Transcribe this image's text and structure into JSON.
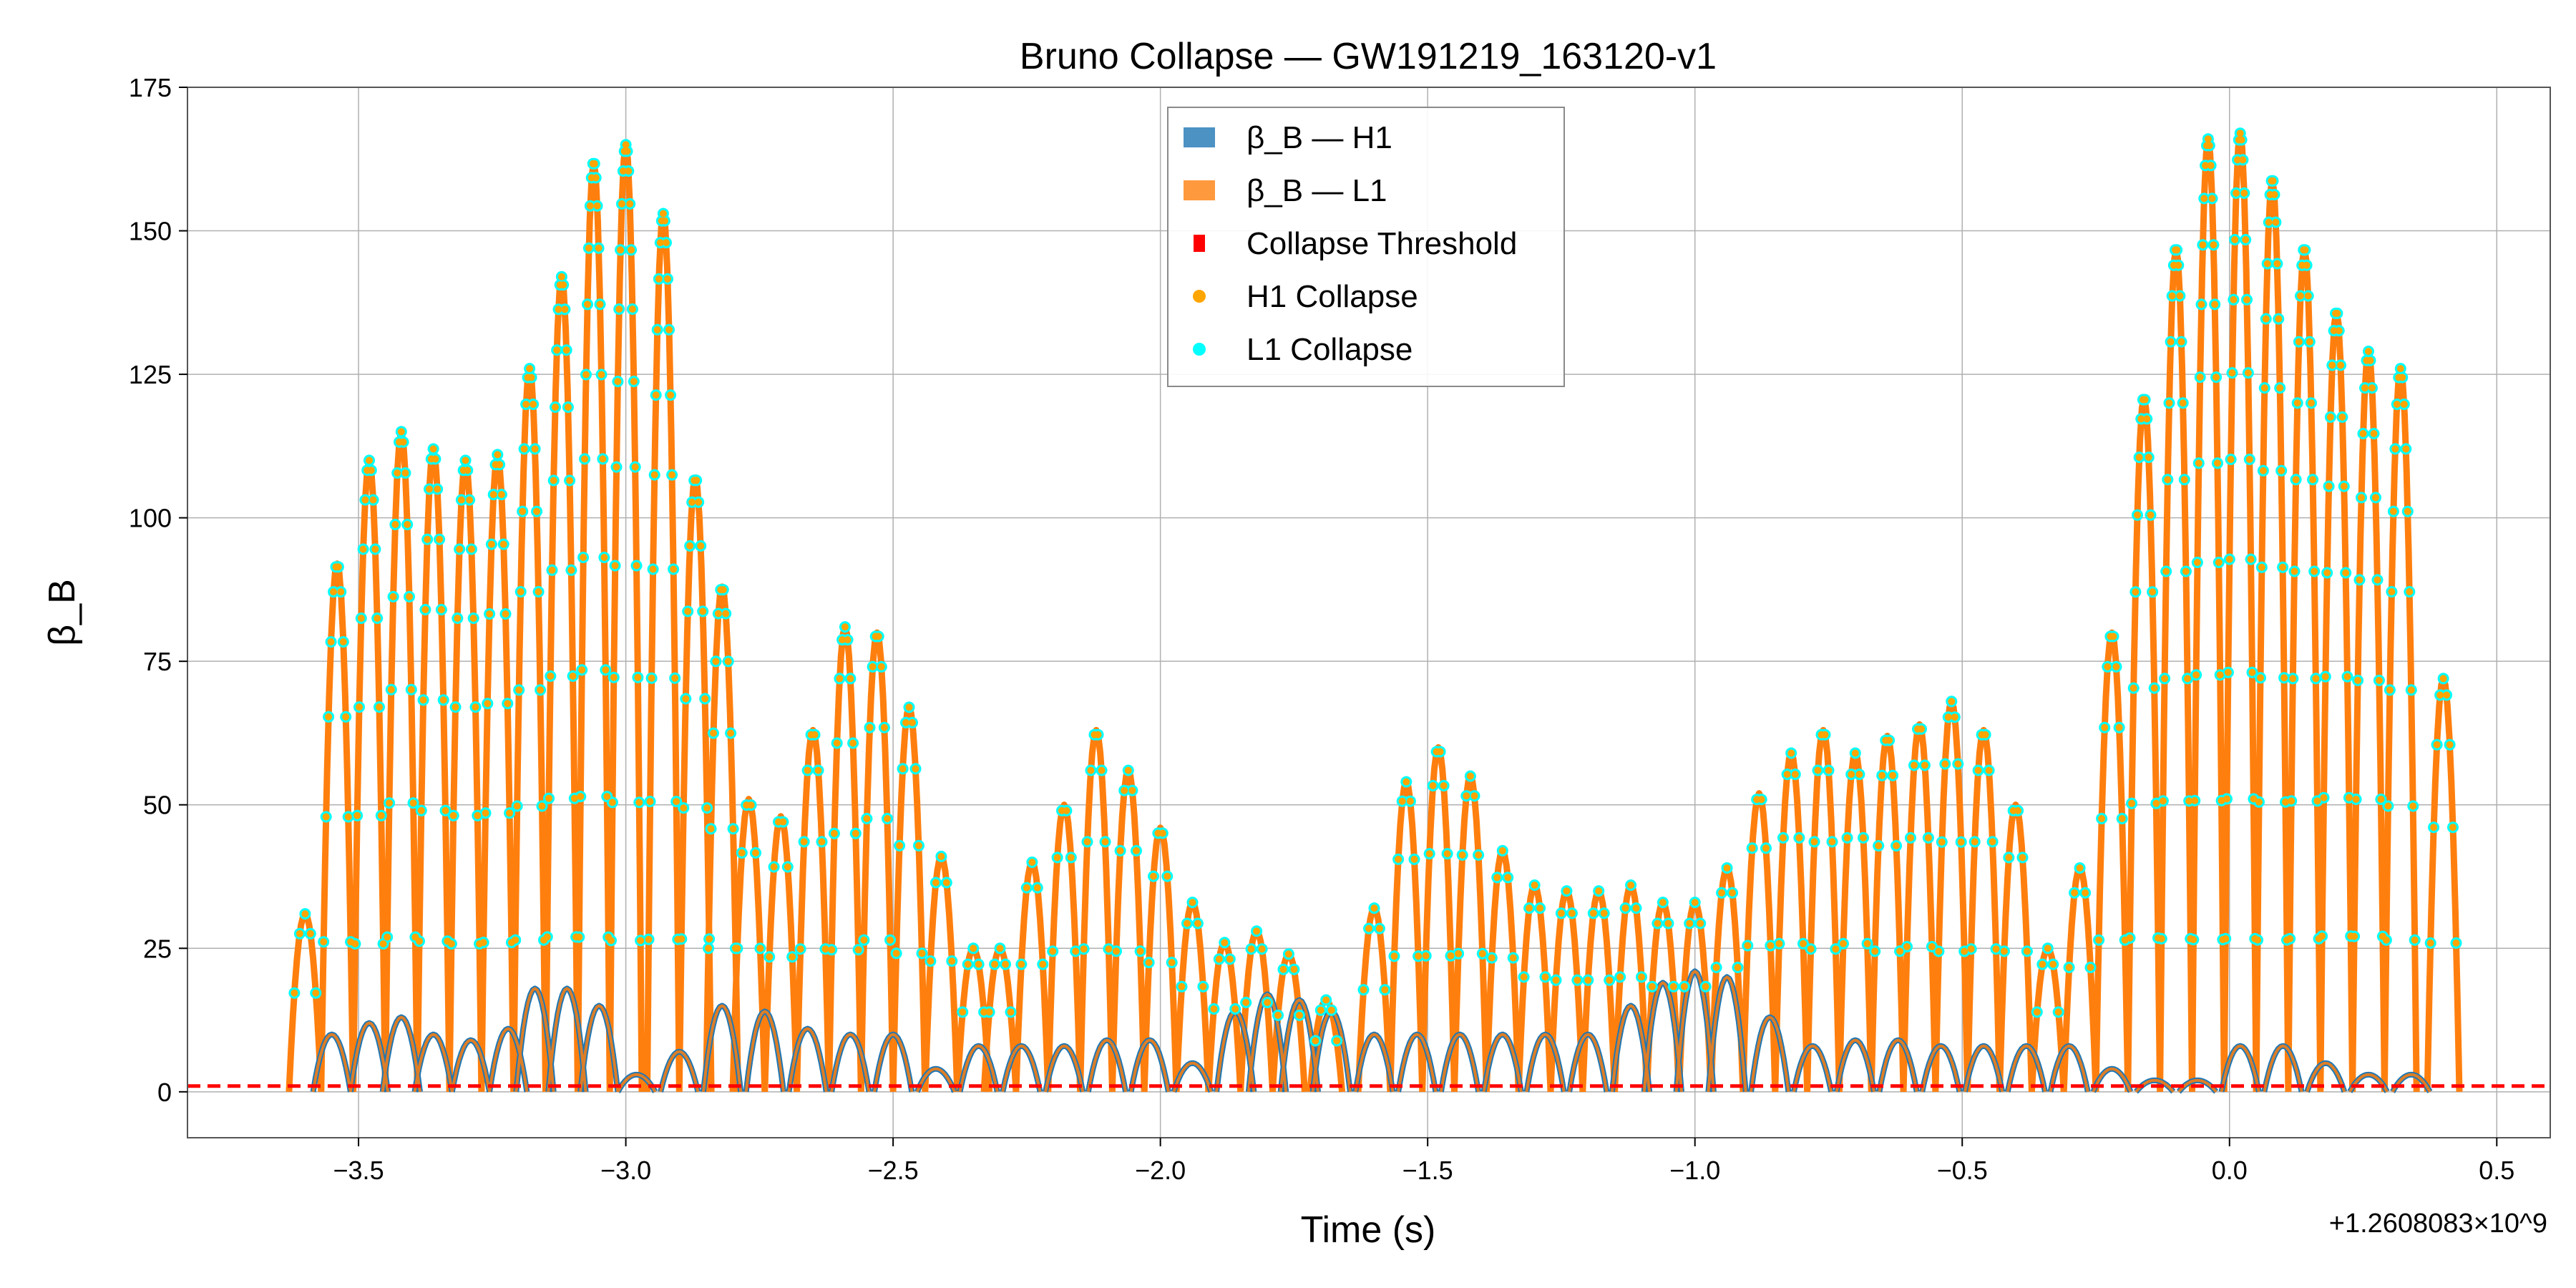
{
  "chart_data": {
    "type": "line",
    "title": "Bruno Collapse — GW191219_163120-v1",
    "xlabel": "Time (s)",
    "ylabel": "β_B",
    "x_offset_label": "+1.2608083×10^9",
    "xlim": [
      -3.82,
      0.6
    ],
    "ylim": [
      -8,
      175
    ],
    "x_ticks": [
      -3.5,
      -3.0,
      -2.5,
      -2.0,
      -1.5,
      -1.0,
      -0.5,
      0.0,
      0.5
    ],
    "x_tick_labels": [
      "−3.5",
      "−3.0",
      "−2.5",
      "−2.0",
      "−1.5",
      "−1.0",
      "−0.5",
      "0.0",
      "0.5"
    ],
    "y_ticks": [
      0,
      25,
      50,
      75,
      100,
      125,
      150,
      175
    ],
    "y_tick_labels": [
      "0",
      "25",
      "50",
      "75",
      "100",
      "125",
      "150",
      "175"
    ],
    "grid": true,
    "legend_position": "top-center",
    "threshold": 1.0,
    "colors": {
      "h1": "#1f77b4",
      "l1": "#ff7f0e",
      "threshold": "#ff0000",
      "h1_collapse": "#ffa500",
      "l1_collapse": "#00ffff"
    },
    "legend": [
      {
        "key": "h1",
        "label": "β_B — H1",
        "marker": "patch"
      },
      {
        "key": "l1",
        "label": "β_B — L1",
        "marker": "patch"
      },
      {
        "key": "threshold",
        "label": "Collapse Threshold",
        "marker": "square"
      },
      {
        "key": "h1_collapse",
        "label": "H1 Collapse",
        "marker": "dot"
      },
      {
        "key": "l1_collapse",
        "label": "L1 Collapse",
        "marker": "dot"
      }
    ],
    "series": [
      {
        "name": "β_B — H1",
        "key": "h1",
        "lobes": [
          {
            "t": -3.55,
            "peak": 10
          },
          {
            "t": -3.48,
            "peak": 12
          },
          {
            "t": -3.42,
            "peak": 13
          },
          {
            "t": -3.36,
            "peak": 10
          },
          {
            "t": -3.29,
            "peak": 9
          },
          {
            "t": -3.22,
            "peak": 11
          },
          {
            "t": -3.17,
            "peak": 18
          },
          {
            "t": -3.11,
            "peak": 18
          },
          {
            "t": -3.05,
            "peak": 15
          },
          {
            "t": -2.98,
            "peak": 3
          },
          {
            "t": -2.9,
            "peak": 7
          },
          {
            "t": -2.82,
            "peak": 15
          },
          {
            "t": -2.74,
            "peak": 14
          },
          {
            "t": -2.66,
            "peak": 11
          },
          {
            "t": -2.58,
            "peak": 10
          },
          {
            "t": -2.5,
            "peak": 10
          },
          {
            "t": -2.42,
            "peak": 4
          },
          {
            "t": -2.34,
            "peak": 8
          },
          {
            "t": -2.26,
            "peak": 8
          },
          {
            "t": -2.18,
            "peak": 8
          },
          {
            "t": -2.1,
            "peak": 9
          },
          {
            "t": -2.02,
            "peak": 9
          },
          {
            "t": -1.94,
            "peak": 5
          },
          {
            "t": -1.86,
            "peak": 14
          },
          {
            "t": -1.8,
            "peak": 17
          },
          {
            "t": -1.74,
            "peak": 16
          },
          {
            "t": -1.68,
            "peak": 14
          },
          {
            "t": -1.6,
            "peak": 10
          },
          {
            "t": -1.52,
            "peak": 10
          },
          {
            "t": -1.44,
            "peak": 10
          },
          {
            "t": -1.36,
            "peak": 10
          },
          {
            "t": -1.28,
            "peak": 10
          },
          {
            "t": -1.2,
            "peak": 10
          },
          {
            "t": -1.12,
            "peak": 15
          },
          {
            "t": -1.06,
            "peak": 19
          },
          {
            "t": -1.0,
            "peak": 21
          },
          {
            "t": -0.94,
            "peak": 20
          },
          {
            "t": -0.86,
            "peak": 13
          },
          {
            "t": -0.78,
            "peak": 8
          },
          {
            "t": -0.7,
            "peak": 9
          },
          {
            "t": -0.62,
            "peak": 9
          },
          {
            "t": -0.54,
            "peak": 8
          },
          {
            "t": -0.46,
            "peak": 8
          },
          {
            "t": -0.38,
            "peak": 8
          },
          {
            "t": -0.3,
            "peak": 8
          },
          {
            "t": -0.22,
            "peak": 4
          },
          {
            "t": -0.14,
            "peak": 2
          },
          {
            "t": -0.06,
            "peak": 2
          },
          {
            "t": 0.02,
            "peak": 8
          },
          {
            "t": 0.1,
            "peak": 8
          },
          {
            "t": 0.18,
            "peak": 5
          },
          {
            "t": 0.26,
            "peak": 3
          },
          {
            "t": 0.34,
            "peak": 3
          }
        ]
      },
      {
        "name": "β_B — L1",
        "key": "l1",
        "lobes": [
          {
            "t": -3.6,
            "peak": 31
          },
          {
            "t": -3.54,
            "peak": 92
          },
          {
            "t": -3.48,
            "peak": 110
          },
          {
            "t": -3.42,
            "peak": 115
          },
          {
            "t": -3.36,
            "peak": 112
          },
          {
            "t": -3.3,
            "peak": 110
          },
          {
            "t": -3.24,
            "peak": 111
          },
          {
            "t": -3.18,
            "peak": 126
          },
          {
            "t": -3.12,
            "peak": 142
          },
          {
            "t": -3.06,
            "peak": 162
          },
          {
            "t": -3.0,
            "peak": 165
          },
          {
            "t": -2.93,
            "peak": 153
          },
          {
            "t": -2.87,
            "peak": 107
          },
          {
            "t": -2.82,
            "peak": 88
          },
          {
            "t": -2.77,
            "peak": 51
          },
          {
            "t": -2.71,
            "peak": 48
          },
          {
            "t": -2.65,
            "peak": 63
          },
          {
            "t": -2.59,
            "peak": 81
          },
          {
            "t": -2.53,
            "peak": 80
          },
          {
            "t": -2.47,
            "peak": 67
          },
          {
            "t": -2.41,
            "peak": 41
          },
          {
            "t": -2.35,
            "peak": 25
          },
          {
            "t": -2.3,
            "peak": 25
          },
          {
            "t": -2.24,
            "peak": 40
          },
          {
            "t": -2.18,
            "peak": 50
          },
          {
            "t": -2.12,
            "peak": 63
          },
          {
            "t": -2.06,
            "peak": 56
          },
          {
            "t": -2.0,
            "peak": 46
          },
          {
            "t": -1.94,
            "peak": 33
          },
          {
            "t": -1.88,
            "peak": 26
          },
          {
            "t": -1.82,
            "peak": 28
          },
          {
            "t": -1.76,
            "peak": 24
          },
          {
            "t": -1.69,
            "peak": 16
          },
          {
            "t": -1.6,
            "peak": 32
          },
          {
            "t": -1.54,
            "peak": 54
          },
          {
            "t": -1.48,
            "peak": 60
          },
          {
            "t": -1.42,
            "peak": 55
          },
          {
            "t": -1.36,
            "peak": 42
          },
          {
            "t": -1.3,
            "peak": 36
          },
          {
            "t": -1.24,
            "peak": 35
          },
          {
            "t": -1.18,
            "peak": 35
          },
          {
            "t": -1.12,
            "peak": 36
          },
          {
            "t": -1.06,
            "peak": 33
          },
          {
            "t": -1.0,
            "peak": 33
          },
          {
            "t": -0.94,
            "peak": 39
          },
          {
            "t": -0.88,
            "peak": 52
          },
          {
            "t": -0.82,
            "peak": 59
          },
          {
            "t": -0.76,
            "peak": 63
          },
          {
            "t": -0.7,
            "peak": 59
          },
          {
            "t": -0.64,
            "peak": 62
          },
          {
            "t": -0.58,
            "peak": 64
          },
          {
            "t": -0.52,
            "peak": 68
          },
          {
            "t": -0.46,
            "peak": 63
          },
          {
            "t": -0.4,
            "peak": 50
          },
          {
            "t": -0.34,
            "peak": 25
          },
          {
            "t": -0.28,
            "peak": 39
          },
          {
            "t": -0.22,
            "peak": 80
          },
          {
            "t": -0.16,
            "peak": 121
          },
          {
            "t": -0.1,
            "peak": 147
          },
          {
            "t": -0.04,
            "peak": 166
          },
          {
            "t": 0.02,
            "peak": 167
          },
          {
            "t": 0.08,
            "peak": 159
          },
          {
            "t": 0.14,
            "peak": 147
          },
          {
            "t": 0.2,
            "peak": 136
          },
          {
            "t": 0.26,
            "peak": 129
          },
          {
            "t": 0.32,
            "peak": 126
          },
          {
            "t": 0.4,
            "peak": 72
          }
        ]
      }
    ]
  }
}
